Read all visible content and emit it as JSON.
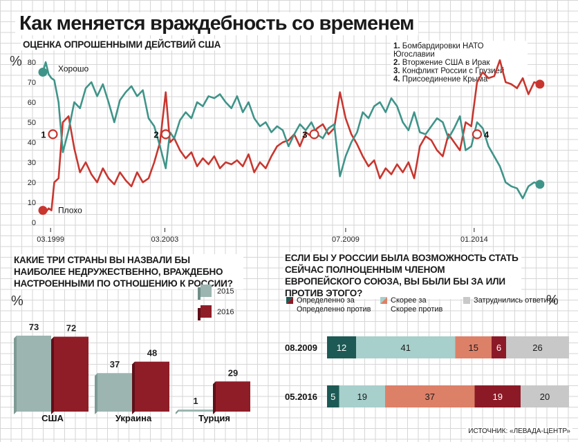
{
  "title": "Как меняется враждебность со временем",
  "colors": {
    "teal": "#3f9489",
    "red": "#c8362f",
    "dark_teal": "#1d5a55",
    "light_teal": "#a7cfcb",
    "dark_red": "#8c1a26",
    "salmon": "#dd8068",
    "gray": "#c8c8c8",
    "bar2015": "#9cb5b0",
    "bar2016": "#8f1d28"
  },
  "chart_data": [
    {
      "type": "line",
      "subtitle": "Оценка опрошенными действий США",
      "y_unit": "%",
      "ylim": [
        0,
        80
      ],
      "y_ticks": [
        "80",
        "70",
        "60",
        "50",
        "40",
        "30",
        "20",
        "10",
        "0"
      ],
      "x_ticks": [
        "03.1999",
        "03.2003",
        "07.2009",
        "01.2014"
      ],
      "x_range": [
        1998.9,
        2016.4
      ],
      "series": [
        {
          "name": "Хорошо",
          "color": "teal",
          "x": [
            1998.9,
            1999.0,
            1999.1,
            1999.2,
            1999.3,
            1999.45,
            1999.6,
            1999.8,
            2000.0,
            2000.2,
            2000.4,
            2000.6,
            2000.8,
            2001.0,
            2001.2,
            2001.4,
            2001.6,
            2001.8,
            2002.0,
            2002.2,
            2002.4,
            2002.6,
            2002.8,
            2003.0,
            2003.2,
            2003.35,
            2003.5,
            2003.7,
            2003.9,
            2004.1,
            2004.3,
            2004.5,
            2004.7,
            2004.9,
            2005.1,
            2005.3,
            2005.5,
            2005.7,
            2005.9,
            2006.1,
            2006.3,
            2006.5,
            2006.7,
            2006.9,
            2007.1,
            2007.3,
            2007.5,
            2007.7,
            2007.9,
            2008.1,
            2008.3,
            2008.5,
            2008.7,
            2008.9,
            2009.1,
            2009.3,
            2009.5,
            2009.7,
            2009.9,
            2010.1,
            2010.3,
            2010.5,
            2010.7,
            2010.9,
            2011.1,
            2011.3,
            2011.5,
            2011.7,
            2011.9,
            2012.1,
            2012.3,
            2012.5,
            2012.7,
            2012.9,
            2013.1,
            2013.3,
            2013.5,
            2013.7,
            2013.9,
            2014.1,
            2014.3,
            2014.5,
            2014.7,
            2014.9,
            2015.1,
            2015.3,
            2015.5,
            2015.7,
            2015.9,
            2016.1,
            2016.3
          ],
          "y": [
            75,
            80,
            74,
            72,
            71,
            60,
            35,
            46,
            60,
            57,
            67,
            70,
            63,
            69,
            60,
            50,
            61,
            65,
            68,
            63,
            66,
            52,
            48,
            38,
            27,
            45,
            42,
            51,
            55,
            52,
            60,
            58,
            63,
            62,
            64,
            60,
            57,
            63,
            55,
            60,
            52,
            48,
            50,
            45,
            48,
            46,
            38,
            44,
            49,
            46,
            50,
            44,
            42,
            47,
            49,
            23,
            33,
            40,
            45,
            55,
            52,
            58,
            60,
            55,
            62,
            58,
            50,
            46,
            55,
            45,
            44,
            48,
            52,
            50,
            42,
            47,
            53,
            36,
            38,
            50,
            47,
            38,
            33,
            28,
            20,
            18,
            17,
            12,
            18,
            20,
            19
          ]
        },
        {
          "name": "Плохо",
          "color": "red",
          "x": [
            1998.9,
            1999.0,
            1999.1,
            1999.2,
            1999.3,
            1999.45,
            1999.6,
            1999.8,
            2000.0,
            2000.2,
            2000.4,
            2000.6,
            2000.8,
            2001.0,
            2001.2,
            2001.4,
            2001.6,
            2001.8,
            2002.0,
            2002.2,
            2002.4,
            2002.6,
            2002.8,
            2003.0,
            2003.2,
            2003.35,
            2003.5,
            2003.7,
            2003.9,
            2004.1,
            2004.3,
            2004.5,
            2004.7,
            2004.9,
            2005.1,
            2005.3,
            2005.5,
            2005.7,
            2005.9,
            2006.1,
            2006.3,
            2006.5,
            2006.7,
            2006.9,
            2007.1,
            2007.3,
            2007.5,
            2007.7,
            2007.9,
            2008.1,
            2008.3,
            2008.5,
            2008.7,
            2008.9,
            2009.1,
            2009.3,
            2009.5,
            2009.7,
            2009.9,
            2010.1,
            2010.3,
            2010.5,
            2010.7,
            2010.9,
            2011.1,
            2011.3,
            2011.5,
            2011.7,
            2011.9,
            2012.1,
            2012.3,
            2012.5,
            2012.7,
            2012.9,
            2013.1,
            2013.3,
            2013.5,
            2013.7,
            2013.9,
            2014.1,
            2014.3,
            2014.5,
            2014.7,
            2014.9,
            2015.1,
            2015.3,
            2015.5,
            2015.7,
            2015.9,
            2016.1,
            2016.3
          ],
          "y": [
            6,
            5,
            7,
            6,
            20,
            22,
            50,
            53,
            37,
            25,
            30,
            24,
            20,
            27,
            22,
            19,
            25,
            21,
            18,
            25,
            20,
            22,
            30,
            40,
            65,
            40,
            42,
            36,
            32,
            35,
            28,
            32,
            29,
            33,
            27,
            30,
            29,
            31,
            28,
            34,
            25,
            30,
            27,
            33,
            38,
            40,
            41,
            44,
            38,
            45,
            43,
            47,
            49,
            44,
            47,
            65,
            52,
            44,
            39,
            33,
            28,
            31,
            22,
            27,
            24,
            29,
            25,
            30,
            22,
            38,
            43,
            41,
            36,
            33,
            44,
            40,
            36,
            50,
            48,
            70,
            75,
            72,
            73,
            81,
            70,
            69,
            67,
            72,
            64,
            70,
            69
          ]
        }
      ],
      "event_markers": [
        {
          "label": "1",
          "x": 1999.25,
          "y": 44
        },
        {
          "label": "2",
          "x": 2003.2,
          "y": 44
        },
        {
          "label": "3",
          "x": 2008.4,
          "y": 44
        },
        {
          "label": "4",
          "x": 2014.1,
          "y": 44
        }
      ],
      "endpoint_labels": {
        "good": "Хорошо",
        "bad": "Плохо"
      },
      "events": [
        "Бомбардировки НАТО Югославии",
        "Вторжение США в Ирак",
        "Конфликт России с Грузией",
        "Присоединение Крыма"
      ]
    },
    {
      "type": "bar",
      "subtitle": "Какие три страны вы назвали бы наиболее недружественно, враждебно настроенными по отношению к России?",
      "y_unit": "%",
      "categories": [
        "США",
        "Украина",
        "Турция"
      ],
      "series": [
        {
          "name": "2015",
          "values": [
            73,
            37,
            1
          ]
        },
        {
          "name": "2016",
          "values": [
            72,
            48,
            29
          ]
        }
      ]
    },
    {
      "type": "bar",
      "subtitle": "Если бы у России была возможность стать сейчас полноценным членом Европейского союза, вы были бы за или против этого?",
      "y_unit": "%",
      "orientation": "horizontal-stacked",
      "categories": [
        "08.2009",
        "05.2016"
      ],
      "legend": [
        "Определенно за",
        "Скорее за",
        "Затруднились ответить",
        "Определенно против",
        "Скорее против"
      ],
      "rows": [
        {
          "label": "08.2009",
          "segments": [
            {
              "key": "def_for",
              "value": 12
            },
            {
              "key": "rather_for",
              "value": 41
            },
            {
              "key": "rather_against",
              "value": 15
            },
            {
              "key": "def_against",
              "value": 6
            },
            {
              "key": "undecided",
              "value": 26
            }
          ]
        },
        {
          "label": "05.2016",
          "segments": [
            {
              "key": "def_for",
              "value": 5
            },
            {
              "key": "rather_for",
              "value": 19
            },
            {
              "key": "rather_against",
              "value": 37
            },
            {
              "key": "def_against",
              "value": 19
            },
            {
              "key": "undecided",
              "value": 20
            }
          ]
        }
      ]
    }
  ],
  "source": "Источник: «Левада-Центр»"
}
